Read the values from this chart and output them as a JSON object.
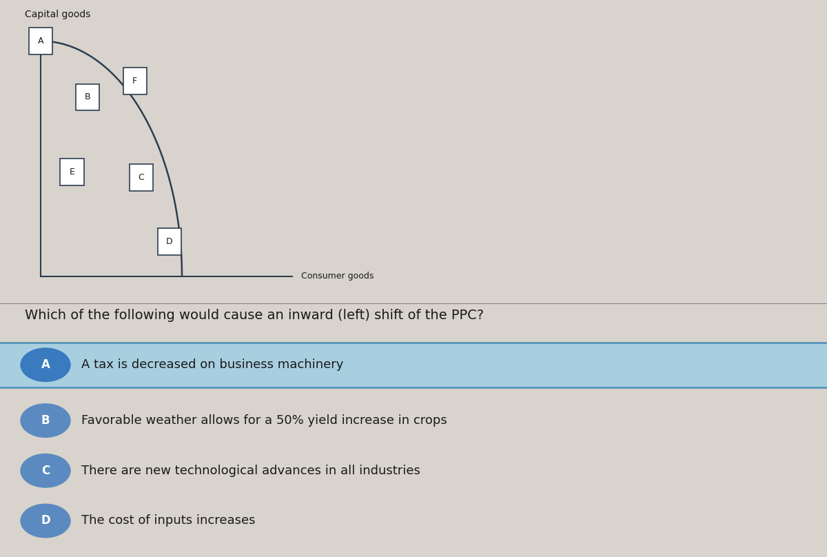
{
  "title_ppc": "Capital goods",
  "xlabel_ppc": "Consumer goods",
  "question": "Which of the following would cause an inward (left) shift of the PPC?",
  "options": [
    {
      "label": "A",
      "text": "A tax is decreased on business machinery",
      "highlighted": true
    },
    {
      "label": "B",
      "text": "Favorable weather allows for a 50% yield increase in crops",
      "highlighted": false
    },
    {
      "label": "C",
      "text": "There are new technological advances in all industries",
      "highlighted": false
    },
    {
      "label": "D",
      "text": "The cost of inputs increases",
      "highlighted": false
    }
  ],
  "bg_color": "#d8d3cc",
  "highlight_color": "#a8cfe0",
  "highlight_border_color": "#4a90b8",
  "circle_color_highlighted": "#3a7abf",
  "circle_color_normal": "#5a8abf",
  "text_color": "#1a1a1a",
  "ppc_curve_color": "#2c3e50",
  "ppc_box_color": "#2c3e50",
  "ppc_bg_color": "#d8d3cc"
}
